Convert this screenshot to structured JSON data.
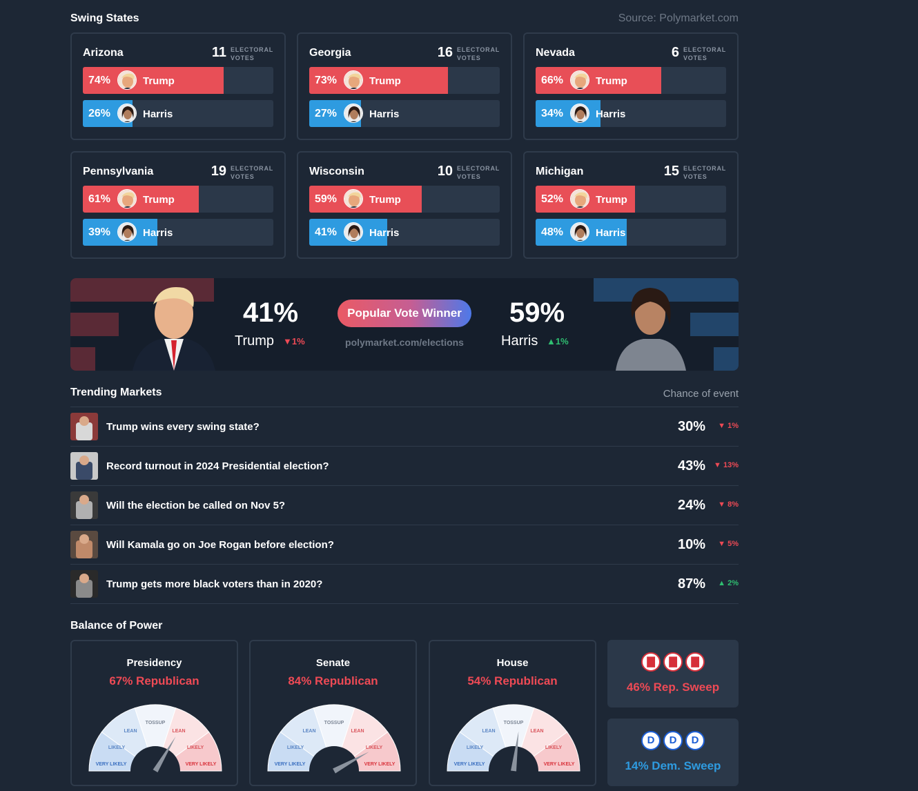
{
  "swing": {
    "title": "Swing States",
    "source": "Source: Polymarket.com",
    "ev_label": "ELECTORAL VOTES",
    "states": [
      {
        "name": "Arizona",
        "ev": "11",
        "trump_pct": "74%",
        "harris_pct": "26%",
        "trump_share": 74,
        "harris_share": 26,
        "trump": "Trump",
        "harris": "Harris"
      },
      {
        "name": "Georgia",
        "ev": "16",
        "trump_pct": "73%",
        "harris_pct": "27%",
        "trump_share": 73,
        "harris_share": 27,
        "trump": "Trump",
        "harris": "Harris"
      },
      {
        "name": "Nevada",
        "ev": "6",
        "trump_pct": "66%",
        "harris_pct": "34%",
        "trump_share": 66,
        "harris_share": 34,
        "trump": "Trump",
        "harris": "Harris"
      },
      {
        "name": "Pennsylvania",
        "ev": "19",
        "trump_pct": "61%",
        "harris_pct": "39%",
        "trump_share": 61,
        "harris_share": 39,
        "trump": "Trump",
        "harris": "Harris"
      },
      {
        "name": "Wisconsin",
        "ev": "10",
        "trump_pct": "59%",
        "harris_pct": "41%",
        "trump_share": 59,
        "harris_share": 41,
        "trump": "Trump",
        "harris": "Harris"
      },
      {
        "name": "Michigan",
        "ev": "15",
        "trump_pct": "52%",
        "harris_pct": "48%",
        "trump_share": 52,
        "harris_share": 48,
        "trump": "Trump",
        "harris": "Harris"
      }
    ]
  },
  "popular": {
    "trump_pct": "41%",
    "trump_name": "Trump",
    "trump_change": "1%",
    "harris_pct": "59%",
    "harris_name": "Harris",
    "harris_change": "1%",
    "pill": "Popular Vote Winner",
    "url": "polymarket.com/elections"
  },
  "trending": {
    "title": "Trending Markets",
    "chance_header": "Chance of event",
    "rows": [
      {
        "question": "Trump wins every swing state?",
        "value": "30%",
        "change": "1%",
        "dir": "down"
      },
      {
        "question": "Record turnout in 2024 Presidential election?",
        "value": "43%",
        "change": "13%",
        "dir": "down"
      },
      {
        "question": "Will the election be called on Nov 5?",
        "value": "24%",
        "change": "8%",
        "dir": "down"
      },
      {
        "question": "Will Kamala go on Joe Rogan before election?",
        "value": "10%",
        "change": "5%",
        "dir": "down"
      },
      {
        "question": "Trump gets more black voters than in 2020?",
        "value": "87%",
        "change": "2%",
        "dir": "up"
      }
    ]
  },
  "balance": {
    "title": "Balance of Power",
    "gauge_labels": {
      "tossup": "TOSSUP",
      "lean": "LEAN",
      "likely": "LIKELY",
      "very_likely": "VERY LIKELY"
    },
    "cards": [
      {
        "title": "Presidency",
        "subtitle": "67% Republican",
        "rep_share": 0.67
      },
      {
        "title": "Senate",
        "subtitle": "84% Republican",
        "rep_share": 0.84
      },
      {
        "title": "House",
        "subtitle": "54% Republican",
        "rep_share": 0.54
      }
    ],
    "rep_sweep": {
      "label": "46% Rep. Sweep",
      "icon": "elephant-icon",
      "color": "#ee4a55"
    },
    "dem_sweep": {
      "label": "14% Dem. Sweep",
      "icon": "D",
      "color": "#2e9be0"
    }
  }
}
